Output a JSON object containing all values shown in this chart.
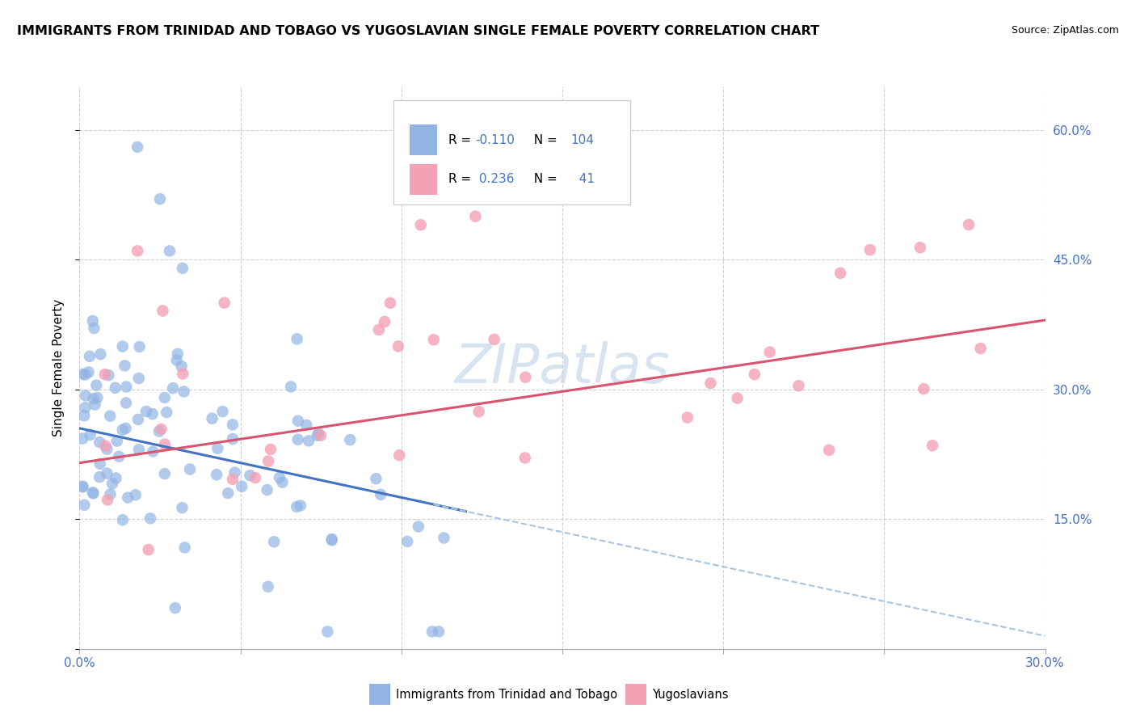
{
  "title": "IMMIGRANTS FROM TRINIDAD AND TOBAGO VS YUGOSLAVIAN SINGLE FEMALE POVERTY CORRELATION CHART",
  "source": "Source: ZipAtlas.com",
  "ylabel": "Single Female Poverty",
  "legend_label1": "Immigrants from Trinidad and Tobago",
  "legend_label2": "Yugoslavians",
  "r1": -0.11,
  "n1": 104,
  "r2": 0.236,
  "n2": 41,
  "color1": "#92b4e3",
  "color2": "#f4a0b5",
  "trend_color1": "#4472c4",
  "trend_color2": "#d9546e",
  "trend_dash_color": "#aac4e0",
  "xlim": [
    0.0,
    0.3
  ],
  "ylim": [
    0.0,
    0.65
  ],
  "xticks": [
    0.0,
    0.05,
    0.1,
    0.15,
    0.2,
    0.25,
    0.3
  ],
  "yticks": [
    0.0,
    0.15,
    0.3,
    0.45,
    0.6
  ],
  "yticklabels_right": [
    "",
    "15.0%",
    "30.0%",
    "45.0%",
    "60.0%"
  ],
  "watermark": "ZIPatlas",
  "tick_color": "#4472c4",
  "seed": 99
}
